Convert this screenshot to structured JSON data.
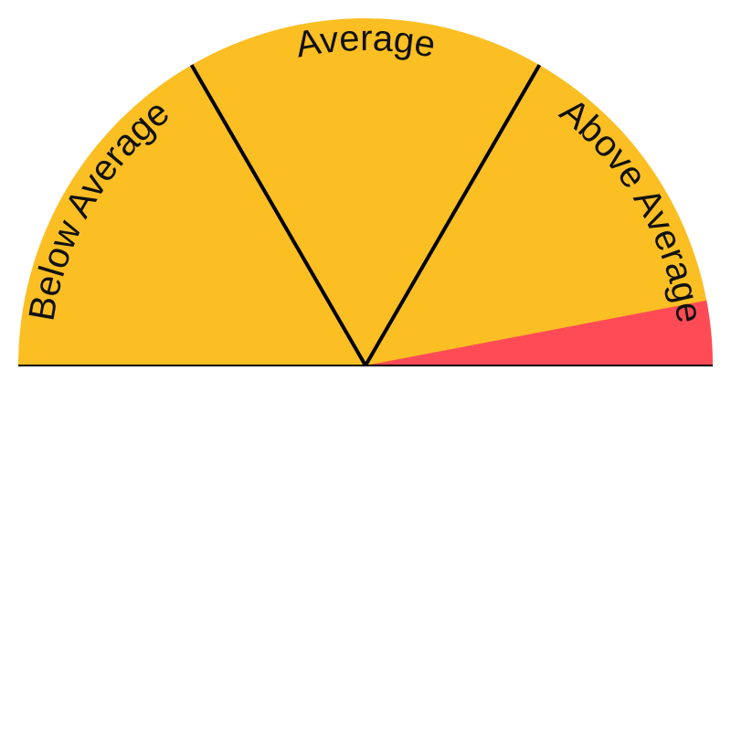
{
  "chart_data": {
    "type": "gauge",
    "range": [
      0,
      100
    ],
    "value": 94,
    "segments": [
      {
        "label": "Below Average",
        "from": 0,
        "to": 33.3
      },
      {
        "label": "Average",
        "from": 33.3,
        "to": 66.7
      },
      {
        "label": "Above Average",
        "from": 66.7,
        "to": 100
      }
    ],
    "colors": {
      "gauge_fill": "#FBBF24",
      "value_fill": "#FF4B55",
      "divider": "#000000",
      "baseline": "#000000"
    }
  }
}
